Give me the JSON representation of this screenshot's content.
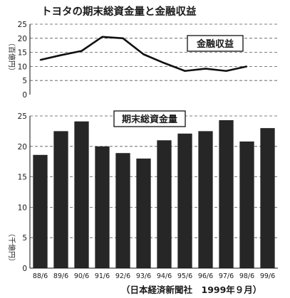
{
  "chart_data": [
    {
      "type": "line",
      "title": "トヨタの期末総資金量と金融収益",
      "series_label": "金融収益",
      "ylabel": "（百億円）",
      "ylim": [
        0,
        25
      ],
      "yticks": [
        0,
        5,
        10,
        15,
        20,
        25
      ],
      "grid": true,
      "categories": [
        "88/6",
        "89/6",
        "90/6",
        "91/6",
        "92/6",
        "93/6",
        "94/6",
        "95/6",
        "96/6",
        "97/6",
        "98/6",
        "99/6"
      ],
      "values": [
        12.3,
        14.0,
        15.5,
        20.5,
        20.0,
        14.3,
        11.2,
        8.4,
        9.2,
        8.4,
        10.0,
        null
      ]
    },
    {
      "type": "bar",
      "series_label": "期末総資金量",
      "ylabel": "（千億円）",
      "ylim": [
        0,
        25
      ],
      "yticks": [
        0,
        5,
        10,
        15,
        20,
        25
      ],
      "grid": true,
      "categories": [
        "88/6",
        "89/6",
        "90/6",
        "91/6",
        "92/6",
        "93/6",
        "94/6",
        "95/6",
        "96/6",
        "97/6",
        "98/6",
        "99/6"
      ],
      "values": [
        18.6,
        22.5,
        24.1,
        20.0,
        18.9,
        18.0,
        21.0,
        22.1,
        22.5,
        24.3,
        20.8,
        23.0
      ],
      "bar_color": "#262626"
    }
  ],
  "source": "（日本経済新聞社　1999年９月）"
}
